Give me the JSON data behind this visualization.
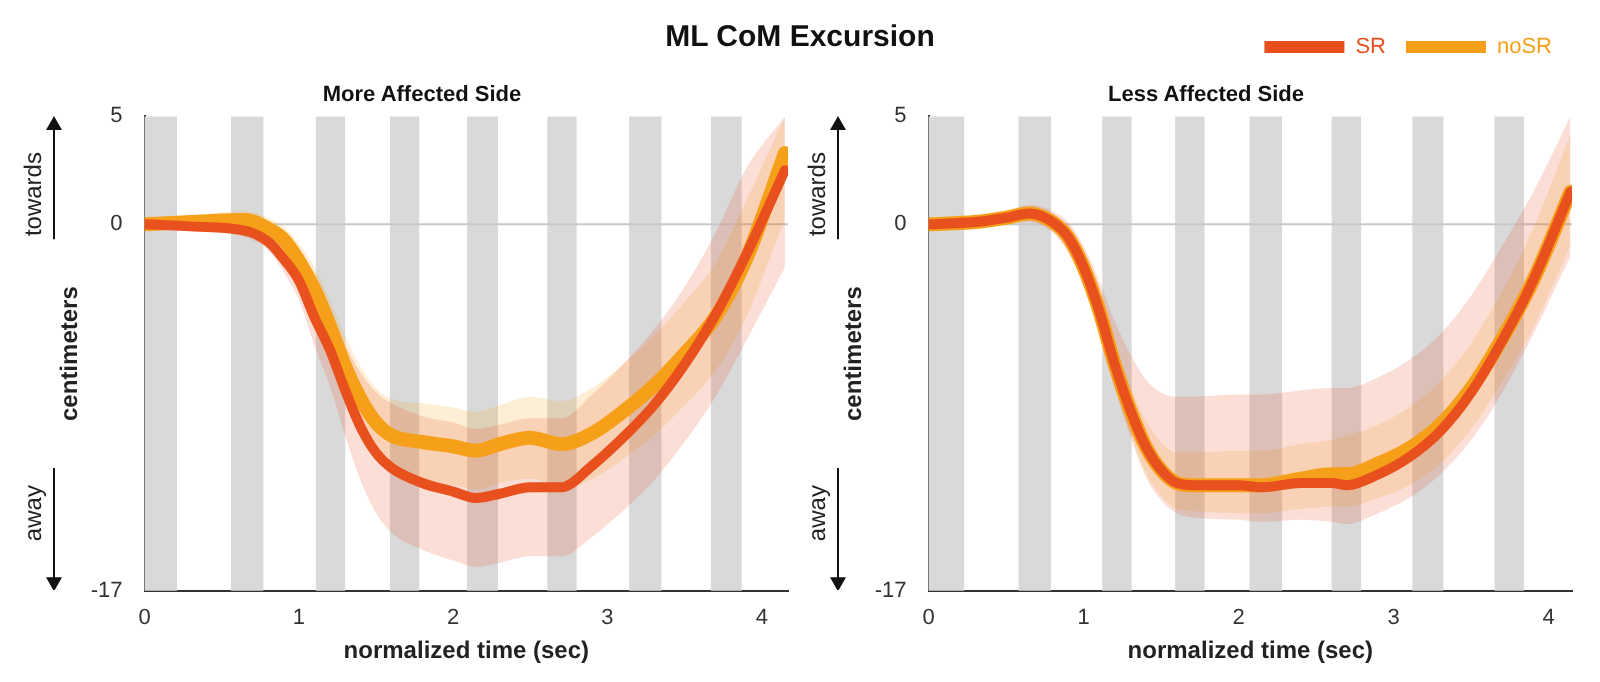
{
  "chart_data": [
    {
      "type": "line",
      "title": "ML CoM Excursion",
      "subtitle": "More Affected Side",
      "xlabel": "normalized time (sec)",
      "ylabel": "centimeters",
      "annotations": [
        "towards",
        "away"
      ],
      "x": [
        0,
        0.3,
        0.65,
        0.8,
        0.9,
        1.0,
        1.1,
        1.2,
        1.3,
        1.4,
        1.5,
        1.6,
        1.8,
        2.0,
        2.15,
        2.3,
        2.5,
        2.7,
        2.9,
        3.1,
        3.3,
        3.5,
        3.7,
        3.9,
        4.15
      ],
      "series": [
        {
          "color": "#e8501e",
          "values": [
            0,
            -0.1,
            -0.3,
            -0.8,
            -1.6,
            -2.6,
            -4.3,
            -5.8,
            -7.7,
            -9.4,
            -10.6,
            -11.3,
            -12.0,
            -12.4,
            -12.7,
            -12.5,
            -12.2,
            -12.2,
            -11.2,
            -9.9,
            -8.4,
            -6.5,
            -4.2,
            -1.4,
            2.5
          ],
          "lower": [
            -0.2,
            -0.3,
            -0.6,
            -1.2,
            -2.2,
            -3.5,
            -5.6,
            -7.5,
            -9.8,
            -11.9,
            -13.4,
            -14.3,
            -15.1,
            -15.6,
            -15.9,
            -15.7,
            -15.4,
            -15.4,
            -14.5,
            -13.3,
            -11.9,
            -10.1,
            -8.0,
            -5.4,
            -2.0
          ],
          "upper": [
            0.2,
            0.1,
            0,
            -0.4,
            -1.0,
            -1.7,
            -3.0,
            -4.1,
            -5.6,
            -6.9,
            -7.8,
            -8.3,
            -8.9,
            -9.2,
            -9.5,
            -9.3,
            -9.0,
            -9.0,
            -7.9,
            -6.5,
            -4.9,
            -2.9,
            -0.4,
            2.6,
            5
          ]
        },
        {
          "color": "#f6a01a",
          "values": [
            0,
            0.1,
            0.2,
            -0.2,
            -0.7,
            -1.7,
            -3.0,
            -4.7,
            -6.6,
            -8.1,
            -9.2,
            -9.8,
            -10.1,
            -10.3,
            -10.5,
            -10.2,
            -9.9,
            -10.2,
            -9.7,
            -8.7,
            -7.5,
            -6.0,
            -4.3,
            -1.6,
            3.3
          ],
          "lower": [
            -0.2,
            -0.2,
            -0.2,
            -0.7,
            -1.3,
            -2.5,
            -4.0,
            -5.9,
            -8.0,
            -9.6,
            -10.8,
            -11.5,
            -11.9,
            -12.1,
            -12.3,
            -12.0,
            -11.8,
            -12.2,
            -11.8,
            -10.9,
            -9.8,
            -8.4,
            -6.8,
            -4.3,
            0.3
          ],
          "upper": [
            0.2,
            0.4,
            0.6,
            0.3,
            -0.1,
            -0.9,
            -2.0,
            -3.5,
            -5.2,
            -6.6,
            -7.6,
            -8.1,
            -8.3,
            -8.5,
            -8.7,
            -8.4,
            -8.0,
            -8.2,
            -7.6,
            -6.5,
            -5.2,
            -3.6,
            -1.8,
            1.1,
            5
          ]
        }
      ],
      "xlim": [
        0,
        4.17
      ],
      "xticks": [
        0,
        1,
        2,
        3,
        4
      ],
      "ylim": [
        -17,
        5
      ],
      "yticks": [
        -17,
        0,
        5
      ],
      "grid": false,
      "legend": false,
      "ref_lines": [
        {
          "axis": "y",
          "value": 0,
          "color": "#c8c8c8"
        }
      ],
      "bands": [
        {
          "axis": "x",
          "from": 0,
          "to": 0.21,
          "color": "#d9d9d9"
        },
        {
          "axis": "x",
          "from": 0.56,
          "to": 0.77,
          "color": "#d9d9d9"
        },
        {
          "axis": "x",
          "from": 1.11,
          "to": 1.3,
          "color": "#d9d9d9"
        },
        {
          "axis": "x",
          "from": 1.59,
          "to": 1.78,
          "color": "#d9d9d9"
        },
        {
          "axis": "x",
          "from": 2.09,
          "to": 2.29,
          "color": "#d9d9d9"
        },
        {
          "axis": "x",
          "from": 2.61,
          "to": 2.8,
          "color": "#d9d9d9"
        },
        {
          "axis": "x",
          "from": 3.14,
          "to": 3.35,
          "color": "#d9d9d9"
        },
        {
          "axis": "x",
          "from": 3.67,
          "to": 3.87,
          "color": "#d9d9d9"
        }
      ]
    },
    {
      "type": "line",
      "subtitle": "Less Affected Side",
      "xlabel": "normalized time (sec)",
      "ylabel": "centimeters",
      "annotations": [
        "towards",
        "away"
      ],
      "x": [
        0,
        0.3,
        0.5,
        0.65,
        0.8,
        0.9,
        1.0,
        1.1,
        1.2,
        1.3,
        1.4,
        1.5,
        1.6,
        1.7,
        2.0,
        2.15,
        2.4,
        2.6,
        2.7,
        2.9,
        3.1,
        3.3,
        3.5,
        3.7,
        3.9,
        4.14
      ],
      "series": [
        {
          "name": "SR",
          "color": "#e8501e",
          "values": [
            0,
            0.1,
            0.3,
            0.5,
            0.1,
            -0.6,
            -2.0,
            -4.0,
            -6.5,
            -8.6,
            -10.3,
            -11.4,
            -12.0,
            -12.1,
            -12.1,
            -12.2,
            -12.0,
            -12.0,
            -12.1,
            -11.6,
            -10.8,
            -9.6,
            -7.8,
            -5.4,
            -2.6,
            1.5
          ],
          "lower": [
            -0.2,
            -0.1,
            0,
            0.1,
            -0.4,
            -1.3,
            -2.8,
            -5.0,
            -7.6,
            -9.8,
            -11.7,
            -12.8,
            -13.4,
            -13.6,
            -13.7,
            -13.8,
            -13.7,
            -13.8,
            -13.9,
            -13.4,
            -12.7,
            -11.6,
            -10.0,
            -7.8,
            -5.1,
            -1.5
          ],
          "upper": [
            0.2,
            0.3,
            0.6,
            0.9,
            0.6,
            0.1,
            -1.0,
            -2.6,
            -4.5,
            -6.0,
            -7.2,
            -7.8,
            -8.0,
            -8.0,
            -7.9,
            -7.9,
            -7.7,
            -7.6,
            -7.6,
            -7.1,
            -6.3,
            -5.1,
            -3.3,
            -1.0,
            1.5,
            5
          ]
        },
        {
          "name": "noSR",
          "color": "#f6a01a",
          "values": [
            0,
            0.1,
            0.3,
            0.5,
            0.1,
            -0.6,
            -2.0,
            -4.0,
            -6.5,
            -8.6,
            -10.3,
            -11.4,
            -12.0,
            -12.1,
            -12.1,
            -12.1,
            -11.8,
            -11.6,
            -11.6,
            -11.1,
            -10.4,
            -9.3,
            -7.6,
            -5.3,
            -2.6,
            1.5
          ],
          "lower": [
            -0.1,
            0,
            0.2,
            0.3,
            -0.2,
            -1.0,
            -2.6,
            -4.8,
            -7.5,
            -9.7,
            -11.5,
            -12.6,
            -13.2,
            -13.3,
            -13.4,
            -13.4,
            -13.2,
            -13.1,
            -13.1,
            -12.7,
            -12.1,
            -11.1,
            -9.5,
            -7.3,
            -4.8,
            -1.0
          ],
          "upper": [
            0.1,
            0.2,
            0.4,
            0.7,
            0.4,
            -0.2,
            -1.4,
            -3.2,
            -5.5,
            -7.5,
            -9.1,
            -10.1,
            -10.6,
            -10.6,
            -10.5,
            -10.5,
            -10.2,
            -10.0,
            -9.8,
            -9.3,
            -8.5,
            -7.3,
            -5.5,
            -3.1,
            -0.2,
            4.2
          ]
        }
      ],
      "xlim": [
        0,
        4.15
      ],
      "xticks": [
        0,
        1,
        2,
        3,
        4
      ],
      "ylim": [
        -17,
        5
      ],
      "yticks": [
        -17,
        0,
        5
      ],
      "grid": false,
      "legend": "top right",
      "ref_lines": [
        {
          "axis": "y",
          "value": 0,
          "color": "#c8c8c8"
        }
      ],
      "bands": [
        {
          "axis": "x",
          "from": 0,
          "to": 0.23,
          "color": "#d9d9d9"
        },
        {
          "axis": "x",
          "from": 0.58,
          "to": 0.79,
          "color": "#d9d9d9"
        },
        {
          "axis": "x",
          "from": 1.12,
          "to": 1.31,
          "color": "#d9d9d9"
        },
        {
          "axis": "x",
          "from": 1.59,
          "to": 1.78,
          "color": "#d9d9d9"
        },
        {
          "axis": "x",
          "from": 2.07,
          "to": 2.28,
          "color": "#d9d9d9"
        },
        {
          "axis": "x",
          "from": 2.6,
          "to": 2.79,
          "color": "#d9d9d9"
        },
        {
          "axis": "x",
          "from": 3.12,
          "to": 3.32,
          "color": "#d9d9d9"
        },
        {
          "axis": "x",
          "from": 3.65,
          "to": 3.84,
          "color": "#d9d9d9"
        }
      ]
    }
  ]
}
